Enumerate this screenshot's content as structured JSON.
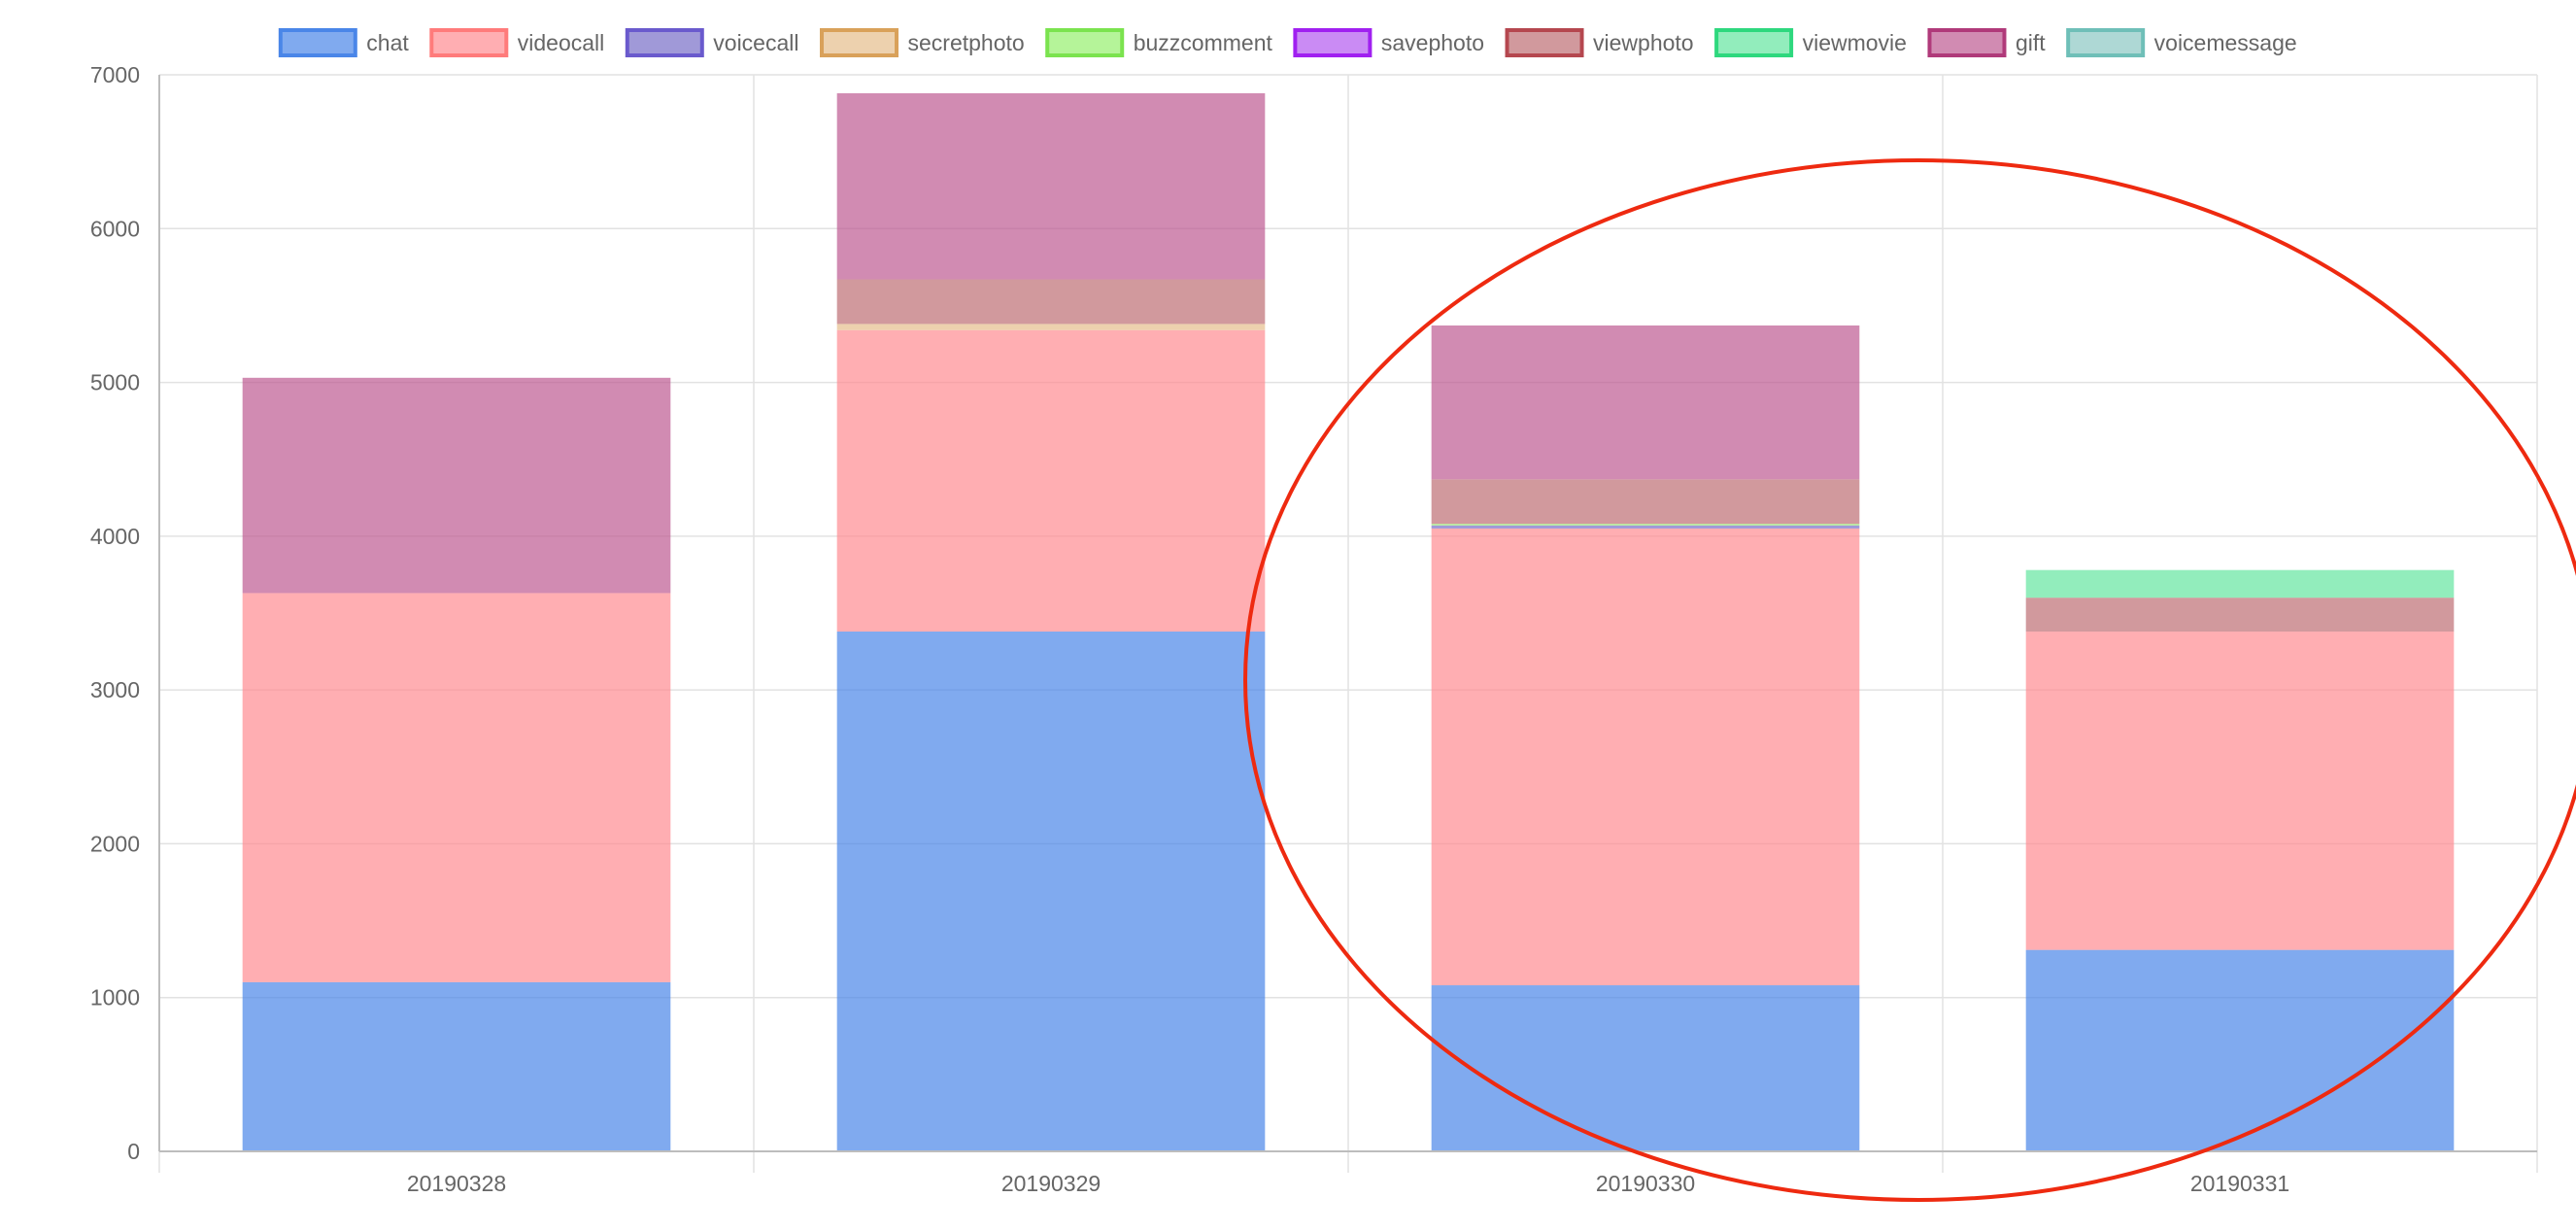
{
  "chart_data": {
    "type": "bar",
    "stacked": true,
    "categories": [
      "20190328",
      "20190329",
      "20190330",
      "20190331"
    ],
    "ylim": [
      0,
      7000
    ],
    "yticks": [
      "0",
      "1000",
      "2000",
      "3000",
      "4000",
      "5000",
      "6000",
      "7000"
    ],
    "grid": true,
    "legend_position": "top",
    "series": [
      {
        "name": "chat",
        "color": "#4a86e8",
        "fill": "rgba(74,134,232,0.7)",
        "values": [
          1100,
          3380,
          1080,
          1310
        ]
      },
      {
        "name": "videocall",
        "color": "#ff7b7b",
        "fill": "rgba(255,140,145,0.7)",
        "values": [
          2530,
          1960,
          2970,
          2070
        ]
      },
      {
        "name": "voicecall",
        "color": "#6a5acd",
        "fill": "rgba(120,110,200,0.7)",
        "values": [
          0,
          0,
          20,
          0
        ]
      },
      {
        "name": "secretphoto",
        "color": "#d9a15a",
        "fill": "rgba(230,190,140,0.7)",
        "values": [
          0,
          40,
          0,
          0
        ]
      },
      {
        "name": "buzzcomment",
        "color": "#7be34f",
        "fill": "rgba(150,240,110,0.7)",
        "values": [
          0,
          0,
          10,
          0
        ]
      },
      {
        "name": "savephoto",
        "color": "#a020f0",
        "fill": "rgba(180,90,240,0.7)",
        "values": [
          0,
          0,
          0,
          0
        ]
      },
      {
        "name": "viewphoto",
        "color": "#b5474f",
        "fill": "rgba(190,110,115,0.7)",
        "values": [
          0,
          290,
          290,
          220
        ]
      },
      {
        "name": "viewmovie",
        "color": "#2ed87e",
        "fill": "rgba(100,230,160,0.7)",
        "values": [
          0,
          0,
          0,
          180
        ]
      },
      {
        "name": "gift",
        "color": "#b03a7a",
        "fill": "rgba(190,90,145,0.7)",
        "values": [
          1400,
          1210,
          1000,
          0
        ]
      },
      {
        "name": "voicemessage",
        "color": "#6fbfb8",
        "fill": "rgba(140,200,195,0.7)",
        "values": [
          0,
          0,
          0,
          0
        ]
      }
    ],
    "annotation": {
      "shape": "ellipse",
      "color": "#ee2a10"
    }
  }
}
